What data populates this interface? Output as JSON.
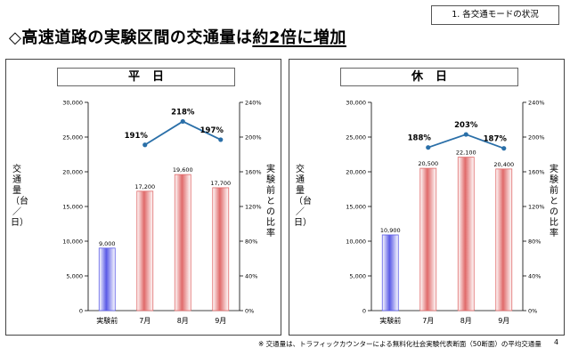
{
  "header": {
    "section_tag": "1. 各交通モードの状況",
    "headline_prefix": "◇高速道路の実験区間の交通量は",
    "headline_emphasis": "約2倍に増加"
  },
  "chart_data": [
    {
      "type": "bar",
      "title": "平日",
      "ylabel": "交通量（台／日）",
      "y2label": "実験前との比率",
      "categories": [
        "実験前",
        "7月",
        "8月",
        "9月"
      ],
      "ylim": [
        0,
        30000
      ],
      "yticks": [
        0,
        5000,
        10000,
        15000,
        20000,
        25000,
        30000
      ],
      "ytick_labels": [
        "0",
        "5,000",
        "10,000",
        "15,000",
        "20,000",
        "25,000",
        "30,000"
      ],
      "y2lim": [
        0,
        240
      ],
      "y2ticks": [
        0,
        40,
        80,
        120,
        160,
        200,
        240
      ],
      "y2tick_labels": [
        "0%",
        "40%",
        "80%",
        "120%",
        "160%",
        "200%",
        "240%"
      ],
      "bars": {
        "values": [
          9000,
          17200,
          19600,
          17700
        ],
        "labels": [
          "9,000",
          "17,200",
          "19,600",
          "17,700"
        ],
        "colors": [
          "#5a5ae6",
          "#e06a6a",
          "#e06a6a",
          "#e06a6a"
        ]
      },
      "ratio_line": {
        "categories": [
          "7月",
          "8月",
          "9月"
        ],
        "values": [
          191,
          218,
          197
        ],
        "labels": [
          "191%",
          "218%",
          "197%"
        ],
        "color": "#2a6fa8"
      },
      "grid": false
    },
    {
      "type": "bar",
      "title": "休日",
      "ylabel": "交通量（台／日）",
      "y2label": "実験前との比率",
      "categories": [
        "実験前",
        "7月",
        "8月",
        "9月"
      ],
      "ylim": [
        0,
        30000
      ],
      "yticks": [
        0,
        5000,
        10000,
        15000,
        20000,
        25000,
        30000
      ],
      "ytick_labels": [
        "0",
        "5,000",
        "10,000",
        "15,000",
        "20,000",
        "25,000",
        "30,000"
      ],
      "y2lim": [
        0,
        240
      ],
      "y2ticks": [
        0,
        40,
        80,
        120,
        160,
        200,
        240
      ],
      "y2tick_labels": [
        "0%",
        "40%",
        "80%",
        "120%",
        "160%",
        "200%",
        "240%"
      ],
      "bars": {
        "values": [
          10900,
          20500,
          22100,
          20400
        ],
        "labels": [
          "10,900",
          "20,500",
          "22,100",
          "20,400"
        ],
        "colors": [
          "#5a5ae6",
          "#e06a6a",
          "#e06a6a",
          "#e06a6a"
        ]
      },
      "ratio_line": {
        "categories": [
          "7月",
          "8月",
          "9月"
        ],
        "values": [
          188,
          203,
          187
        ],
        "labels": [
          "188%",
          "203%",
          "187%"
        ],
        "color": "#2a6fa8"
      },
      "grid": false
    }
  ],
  "footer": {
    "note": "※ 交通量は、トラフィックカウンターによる無料化社会実験代表断面（50断面）の平均交通量",
    "page_number": "4"
  }
}
